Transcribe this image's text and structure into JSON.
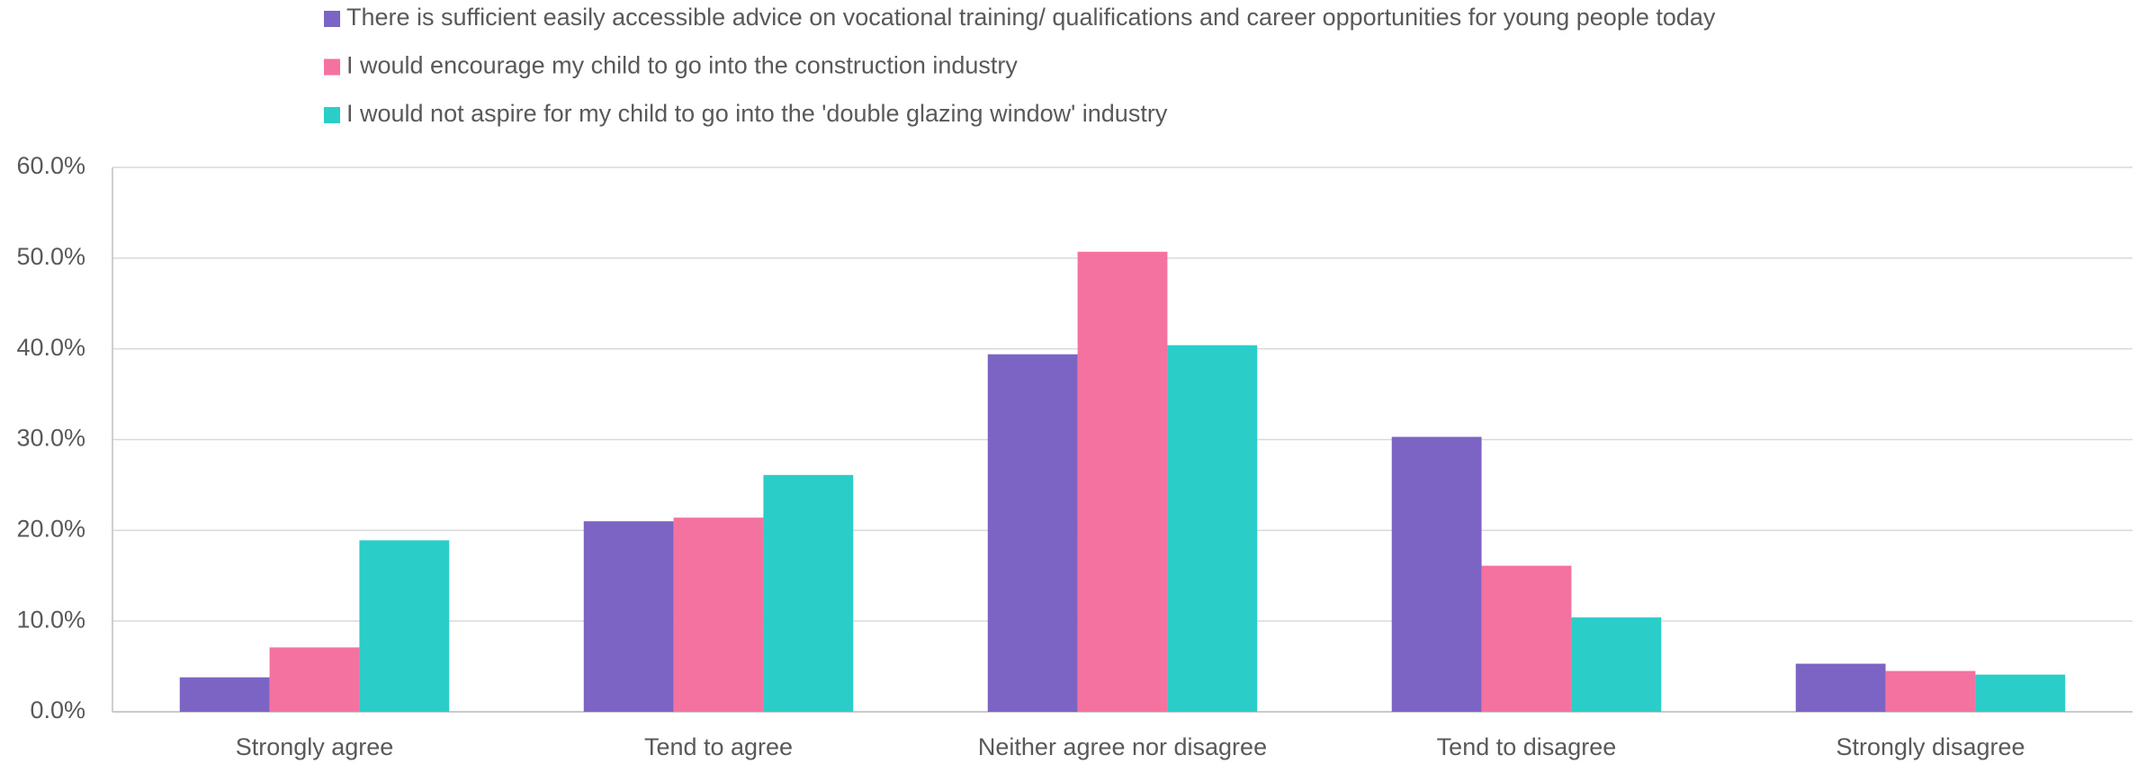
{
  "chart_data": {
    "type": "bar",
    "categories": [
      "Strongly agree",
      "Tend to agree",
      "Neither agree nor disagree",
      "Tend to disagree",
      "Strongly disagree"
    ],
    "series": [
      {
        "name": "There is sufficient easily accessible advice on vocational training/ qualifications and career opportunities for young people today",
        "color": "#7b64c4",
        "values": [
          3.8,
          21.0,
          39.4,
          30.3,
          5.3
        ]
      },
      {
        "name": "I would encourage my child to go into the construction industry",
        "color": "#f472a0",
        "values": [
          7.1,
          21.4,
          50.7,
          16.1,
          4.5
        ]
      },
      {
        "name": "I would not aspire for my child to go into the 'double glazing window' industry",
        "color": "#2acdc8",
        "values": [
          18.9,
          26.1,
          40.4,
          10.4,
          4.1
        ]
      }
    ],
    "ylim": [
      0,
      60
    ],
    "yticks": [
      {
        "value": 0,
        "label": "0.0%"
      },
      {
        "value": 10,
        "label": "10.0%"
      },
      {
        "value": 20,
        "label": "20.0%"
      },
      {
        "value": 30,
        "label": "30.0%"
      },
      {
        "value": 40,
        "label": "40.0%"
      },
      {
        "value": 50,
        "label": "50.0%"
      },
      {
        "value": 60,
        "label": "60.0%"
      }
    ],
    "grid": true,
    "legend": "top"
  }
}
